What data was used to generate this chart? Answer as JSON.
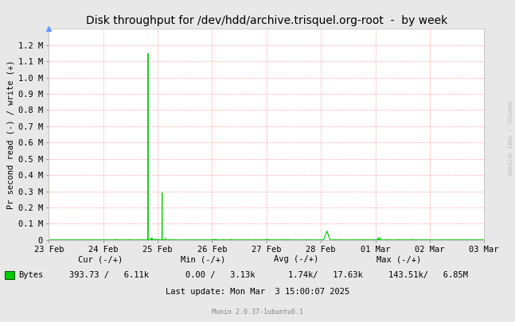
{
  "title": "Disk throughput for /dev/hdd/archive.trisquel.org-root  -  by week",
  "ylabel": "Pr second read (-) / write (+)",
  "bg_color": "#e8e8e8",
  "plot_bg_color": "#ffffff",
  "grid_color": "#ffaaaa",
  "line_color": "#00cc00",
  "ylim": [
    0,
    1300000.0
  ],
  "yticks": [
    0,
    100000.0,
    200000.0,
    300000.0,
    400000.0,
    500000.0,
    600000.0,
    700000.0,
    800000.0,
    900000.0,
    1000000.0,
    1100000.0,
    1200000.0
  ],
  "ytick_labels": [
    "0",
    "0.1 M",
    "0.2 M",
    "0.3 M",
    "0.4 M",
    "0.5 M",
    "0.6 M",
    "0.7 M",
    "0.8 M",
    "0.9 M",
    "1.0 M",
    "1.1 M",
    "1.2 M"
  ],
  "xtick_labels": [
    "23 Feb",
    "24 Feb",
    "25 Feb",
    "26 Feb",
    "27 Feb",
    "28 Feb",
    "01 Mar",
    "02 Mar",
    "03 Mar"
  ],
  "munin_version": "Munin 2.0.37-1ubuntu0.1",
  "right_label": "RRDTOOL / TOBI OETIKER",
  "legend_label": "Bytes",
  "legend_color": "#00cc00",
  "cur_label": "Cur (-/+)",
  "min_label": "Min (-/+)",
  "avg_label": "Avg (-/+)",
  "max_label": "Max (-/+)",
  "cur_val": "393.73 /   6.11k",
  "min_val": "0.00 /   3.13k",
  "avg_val": "1.74k/   17.63k",
  "max_val": "143.51k/   6.85M",
  "last_update": "Last update: Mon Mar  3 15:00:07 2025"
}
